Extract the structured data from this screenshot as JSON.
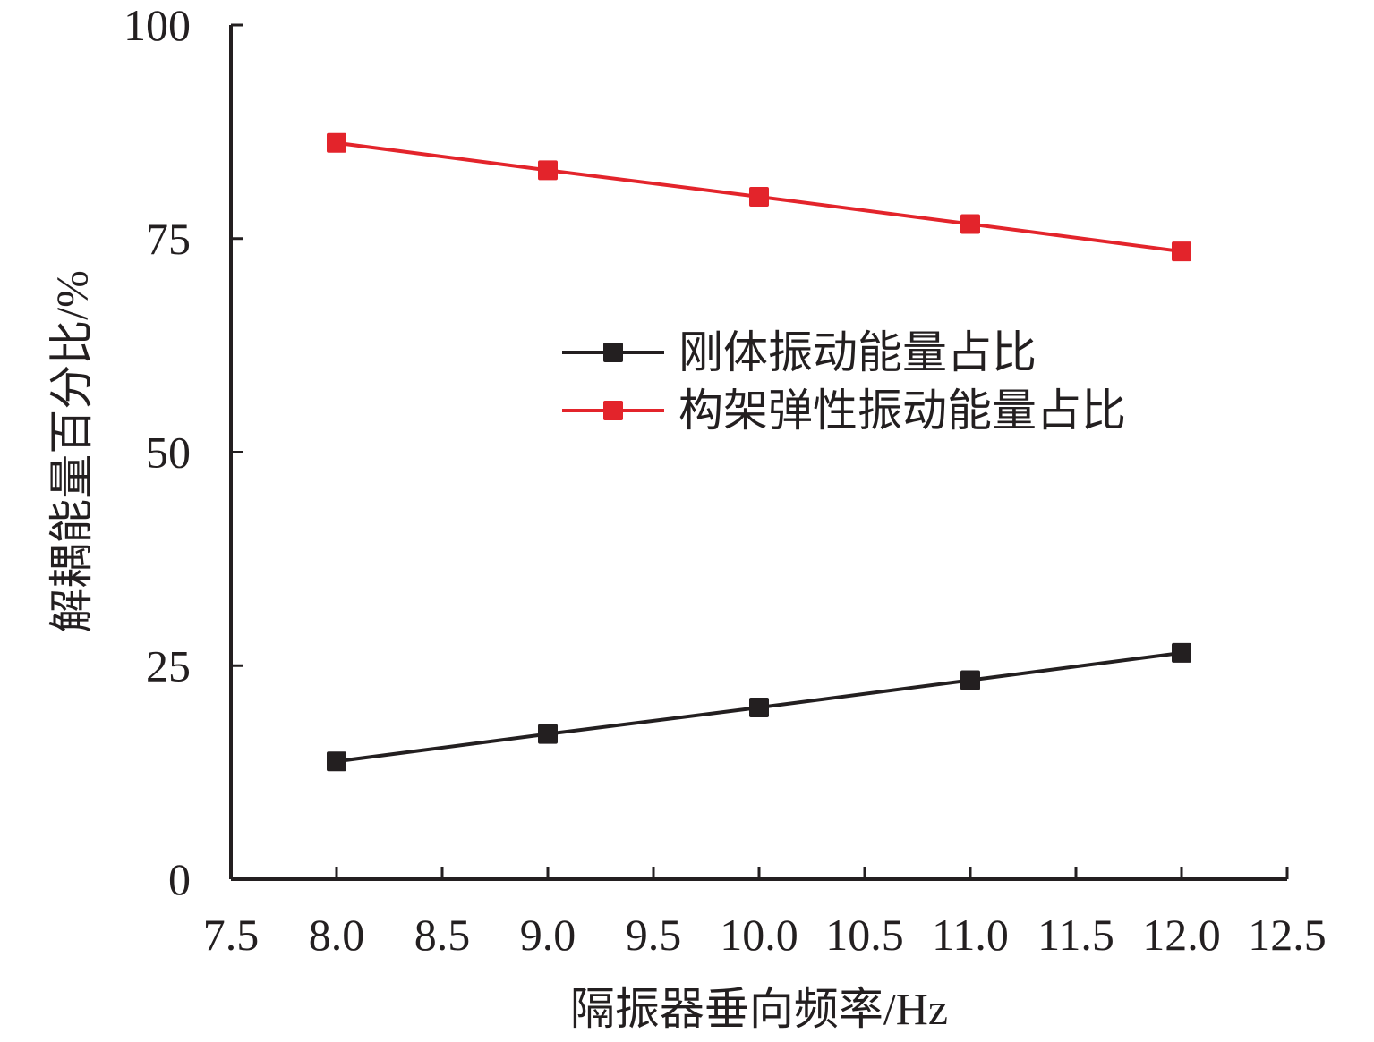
{
  "chart_data": {
    "type": "line",
    "title": "",
    "xlabel": "隔振器垂向频率/Hz",
    "ylabel": "解耦能量百分比/%",
    "xlim": [
      7.5,
      12.5
    ],
    "ylim": [
      0,
      100
    ],
    "x_ticks": [
      "7.5",
      "8.0",
      "8.5",
      "9.0",
      "9.5",
      "10.0",
      "10.5",
      "11.0",
      "11.5",
      "12.0",
      "12.5"
    ],
    "y_ticks": [
      "0",
      "25",
      "50",
      "75",
      "100"
    ],
    "x": [
      8,
      9,
      10,
      11,
      12
    ],
    "series": [
      {
        "name": "刚体振动能量占比",
        "color": "#231f20",
        "values": [
          13.8,
          17.0,
          20.1,
          23.3,
          26.5
        ]
      },
      {
        "name": "构架弹性振动能量占比",
        "color": "#e3242b",
        "values": [
          86.2,
          83.0,
          79.9,
          76.7,
          73.5
        ]
      }
    ],
    "legend_position": "center-right",
    "grid": false
  }
}
